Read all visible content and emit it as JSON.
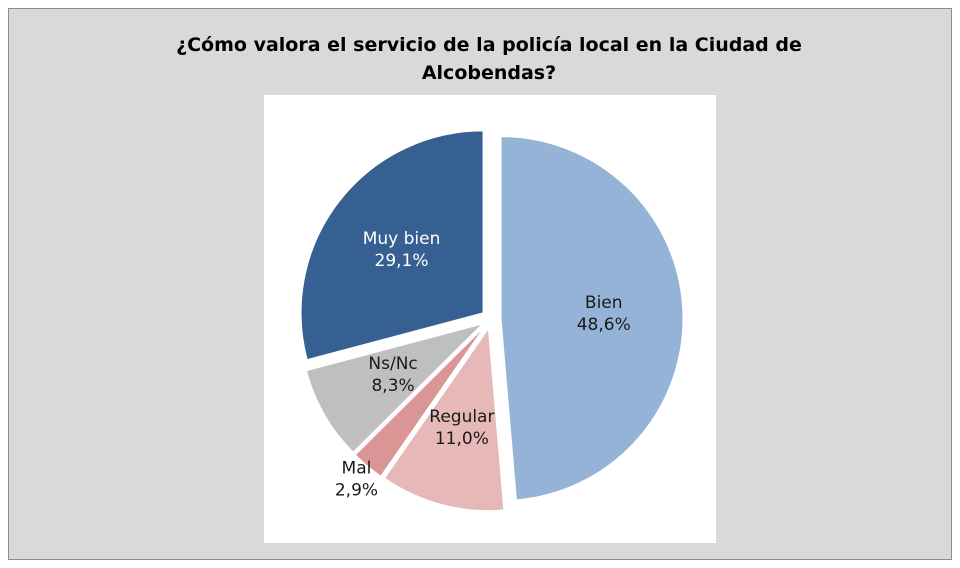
{
  "chart_data": {
    "type": "pie",
    "title": "¿Cómo valora el servicio de la policía local en la Ciudad de Alcobendas?",
    "categories": [
      "Bien",
      "Regular",
      "Mal",
      "Ns/Nc",
      "Muy bien"
    ],
    "values": [
      48.6,
      11.0,
      2.9,
      8.3,
      29.1
    ],
    "value_labels": [
      "48,6%",
      "11,0%",
      "2,9%",
      "8,3%",
      "29,1%"
    ],
    "colors": [
      "#95b3d7",
      "#e6b9b8",
      "#d99694",
      "#bfbfbf",
      "#366092"
    ]
  }
}
